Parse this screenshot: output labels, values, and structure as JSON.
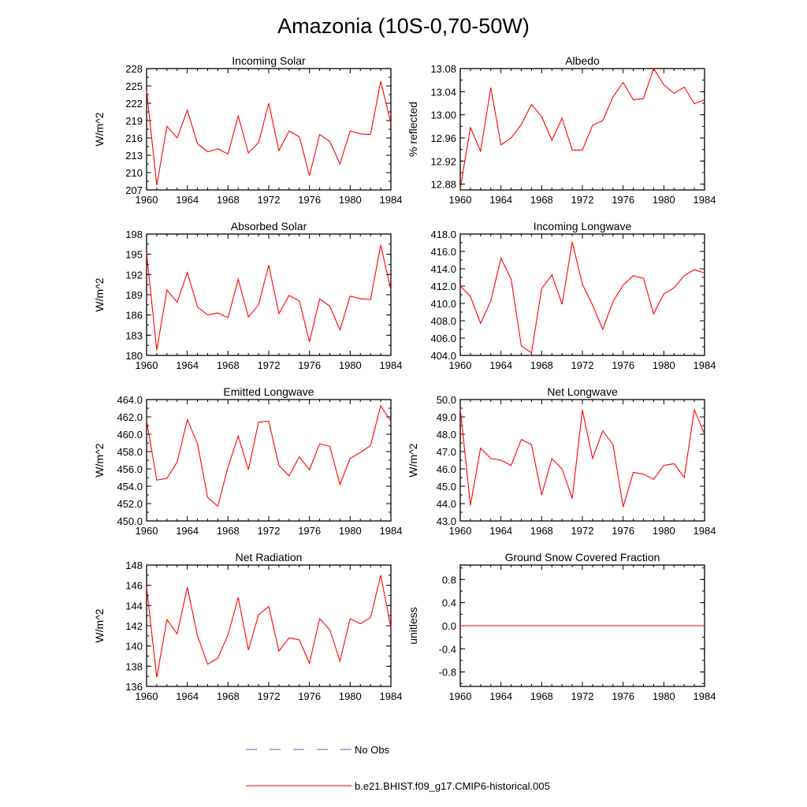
{
  "figure": {
    "title": "Amazonia (10S-0,70-50W)",
    "legend": [
      {
        "label": "No Obs",
        "color": "#5a5aa0",
        "dash": true
      },
      {
        "label": "b.e21.BHIST.f09_g17.CMIP6-historical.005",
        "color": "#ff0000",
        "dash": false
      }
    ],
    "line_color": "#ff0000"
  },
  "chart_data": [
    {
      "type": "line",
      "title": "Incoming Solar",
      "ylabel": "W/m^2",
      "xlim": [
        1960,
        1984
      ],
      "ylim": [
        207,
        228
      ],
      "xticks": [
        "1960",
        "1964",
        "1968",
        "1972",
        "1976",
        "1980",
        "1984"
      ],
      "yticks": [
        {
          "v": 207,
          "label": "207"
        },
        {
          "v": 210,
          "label": "210"
        },
        {
          "v": 213,
          "label": "213"
        },
        {
          "v": 216,
          "label": "216"
        },
        {
          "v": 219,
          "label": "219"
        },
        {
          "v": 222,
          "label": "222"
        },
        {
          "v": 225,
          "label": "225"
        },
        {
          "v": 228,
          "label": "228"
        }
      ],
      "x": [
        1960,
        1961,
        1962,
        1963,
        1964,
        1965,
        1966,
        1967,
        1968,
        1969,
        1970,
        1971,
        1972,
        1973,
        1974,
        1975,
        1976,
        1977,
        1978,
        1979,
        1980,
        1981,
        1982,
        1983,
        1984
      ],
      "series": [
        {
          "values": [
            224.2,
            207.8,
            218.0,
            216.0,
            220.8,
            215.0,
            213.6,
            214.1,
            213.2,
            219.8,
            213.4,
            215.2,
            222.0,
            213.8,
            217.2,
            216.2,
            209.5,
            216.6,
            215.4,
            211.5,
            217.2,
            216.7,
            216.6,
            225.8,
            218.5
          ]
        }
      ]
    },
    {
      "type": "line",
      "title": "Albedo",
      "ylabel": "% reflected",
      "xlim": [
        1960,
        1984
      ],
      "ylim": [
        12.87,
        13.08
      ],
      "xticks": [
        "1960",
        "1964",
        "1968",
        "1972",
        "1976",
        "1980",
        "1984"
      ],
      "yticks": [
        {
          "v": 12.88,
          "label": "12.88"
        },
        {
          "v": 12.92,
          "label": "12.92"
        },
        {
          "v": 12.96,
          "label": "12.96"
        },
        {
          "v": 13.0,
          "label": "13.00"
        },
        {
          "v": 13.04,
          "label": "13.04"
        },
        {
          "v": 13.08,
          "label": "13.08"
        }
      ],
      "x": [
        1960,
        1961,
        1962,
        1963,
        1964,
        1965,
        1966,
        1967,
        1968,
        1969,
        1970,
        1971,
        1972,
        1973,
        1974,
        1975,
        1976,
        1977,
        1978,
        1979,
        1980,
        1981,
        1982,
        1983,
        1984
      ],
      "series": [
        {
          "values": [
            12.872,
            12.978,
            12.937,
            13.047,
            12.948,
            12.96,
            12.983,
            13.018,
            12.997,
            12.956,
            12.994,
            12.939,
            12.939,
            12.982,
            12.99,
            13.031,
            13.056,
            13.026,
            13.028,
            13.08,
            13.052,
            13.037,
            13.048,
            13.019,
            13.026
          ]
        }
      ]
    },
    {
      "type": "line",
      "title": "Absorbed Solar",
      "ylabel": "W/m^2",
      "xlim": [
        1960,
        1984
      ],
      "ylim": [
        180,
        198
      ],
      "xticks": [
        "1960",
        "1964",
        "1968",
        "1972",
        "1976",
        "1980",
        "1984"
      ],
      "yticks": [
        {
          "v": 180,
          "label": "180"
        },
        {
          "v": 183,
          "label": "183"
        },
        {
          "v": 186,
          "label": "186"
        },
        {
          "v": 189,
          "label": "189"
        },
        {
          "v": 192,
          "label": "192"
        },
        {
          "v": 195,
          "label": "195"
        },
        {
          "v": 198,
          "label": "198"
        }
      ],
      "x": [
        1960,
        1961,
        1962,
        1963,
        1964,
        1965,
        1966,
        1967,
        1968,
        1969,
        1970,
        1971,
        1972,
        1973,
        1974,
        1975,
        1976,
        1977,
        1978,
        1979,
        1980,
        1981,
        1982,
        1983,
        1984
      ],
      "series": [
        {
          "values": [
            195.2,
            180.8,
            189.7,
            187.9,
            192.3,
            187.2,
            186.0,
            186.3,
            185.6,
            191.3,
            185.7,
            187.5,
            193.4,
            186.2,
            188.9,
            188.1,
            182.0,
            188.4,
            187.3,
            183.8,
            188.8,
            188.4,
            188.3,
            196.4,
            189.7
          ]
        }
      ]
    },
    {
      "type": "line",
      "title": "Incoming Longwave",
      "ylabel": "",
      "xlim": [
        1960,
        1984
      ],
      "ylim": [
        404,
        418
      ],
      "xticks": [
        "1960",
        "1964",
        "1968",
        "1972",
        "1976",
        "1980",
        "1984"
      ],
      "yticks": [
        {
          "v": 404,
          "label": "404.0"
        },
        {
          "v": 406,
          "label": "406.0"
        },
        {
          "v": 408,
          "label": "408.0"
        },
        {
          "v": 410,
          "label": "410.0"
        },
        {
          "v": 412,
          "label": "412.0"
        },
        {
          "v": 414,
          "label": "414.0"
        },
        {
          "v": 416,
          "label": "416.0"
        },
        {
          "v": 418,
          "label": "418.0"
        }
      ],
      "x": [
        1960,
        1961,
        1962,
        1963,
        1964,
        1965,
        1966,
        1967,
        1968,
        1969,
        1970,
        1971,
        1972,
        1973,
        1974,
        1975,
        1976,
        1977,
        1978,
        1979,
        1980,
        1981,
        1982,
        1983,
        1984
      ],
      "series": [
        {
          "values": [
            412.0,
            410.8,
            407.7,
            410.3,
            415.2,
            412.8,
            405.1,
            404.3,
            411.7,
            413.3,
            409.9,
            417.1,
            412.2,
            409.8,
            407.0,
            410.2,
            412.1,
            413.2,
            412.9,
            408.8,
            411.1,
            411.8,
            413.2,
            413.9,
            413.5
          ]
        }
      ]
    },
    {
      "type": "line",
      "title": "Emitted Longwave",
      "ylabel": "W/m^2",
      "xlim": [
        1960,
        1984
      ],
      "ylim": [
        450,
        464
      ],
      "xticks": [
        "1960",
        "1964",
        "1968",
        "1972",
        "1976",
        "1980",
        "1984"
      ],
      "yticks": [
        {
          "v": 450,
          "label": "450.0"
        },
        {
          "v": 452,
          "label": "452.0"
        },
        {
          "v": 454,
          "label": "454.0"
        },
        {
          "v": 456,
          "label": "456.0"
        },
        {
          "v": 458,
          "label": "458.0"
        },
        {
          "v": 460,
          "label": "460.0"
        },
        {
          "v": 462,
          "label": "462.0"
        },
        {
          "v": 464,
          "label": "464.0"
        }
      ],
      "x": [
        1960,
        1961,
        1962,
        1963,
        1964,
        1965,
        1966,
        1967,
        1968,
        1969,
        1970,
        1971,
        1972,
        1973,
        1974,
        1975,
        1976,
        1977,
        1978,
        1979,
        1980,
        1981,
        1982,
        1983,
        1984
      ],
      "series": [
        {
          "values": [
            461.6,
            454.7,
            454.9,
            456.8,
            461.7,
            458.9,
            452.7,
            451.7,
            456.2,
            459.8,
            455.9,
            461.4,
            461.5,
            456.4,
            455.2,
            457.4,
            455.9,
            458.9,
            458.6,
            454.2,
            457.2,
            457.9,
            458.7,
            463.3,
            461.5
          ]
        }
      ]
    },
    {
      "type": "line",
      "title": "Net Longwave",
      "ylabel": "W/m^2",
      "xlim": [
        1960,
        1984
      ],
      "ylim": [
        43,
        50
      ],
      "xticks": [
        "1960",
        "1964",
        "1968",
        "1972",
        "1976",
        "1980",
        "1984"
      ],
      "yticks": [
        {
          "v": 43,
          "label": "43.0"
        },
        {
          "v": 44,
          "label": "44.0"
        },
        {
          "v": 45,
          "label": "45.0"
        },
        {
          "v": 46,
          "label": "46.0"
        },
        {
          "v": 47,
          "label": "47.0"
        },
        {
          "v": 48,
          "label": "48.0"
        },
        {
          "v": 49,
          "label": "49.0"
        },
        {
          "v": 50,
          "label": "50.0"
        }
      ],
      "x": [
        1960,
        1961,
        1962,
        1963,
        1964,
        1965,
        1966,
        1967,
        1968,
        1969,
        1970,
        1971,
        1972,
        1973,
        1974,
        1975,
        1976,
        1977,
        1978,
        1979,
        1980,
        1981,
        1982,
        1983,
        1984
      ],
      "series": [
        {
          "values": [
            49.5,
            43.9,
            47.2,
            46.6,
            46.5,
            46.2,
            47.7,
            47.4,
            44.5,
            46.6,
            46.0,
            44.3,
            49.4,
            46.6,
            48.2,
            47.4,
            43.8,
            45.8,
            45.7,
            45.4,
            46.2,
            46.3,
            45.5,
            49.4,
            48.0
          ]
        }
      ]
    },
    {
      "type": "line",
      "title": "Net Radiation",
      "ylabel": "W/m^2",
      "xlim": [
        1960,
        1984
      ],
      "ylim": [
        136,
        148
      ],
      "xticks": [
        "1960",
        "1964",
        "1968",
        "1972",
        "1976",
        "1980",
        "1984"
      ],
      "yticks": [
        {
          "v": 136,
          "label": "136"
        },
        {
          "v": 138,
          "label": "138"
        },
        {
          "v": 140,
          "label": "140"
        },
        {
          "v": 142,
          "label": "142"
        },
        {
          "v": 144,
          "label": "144"
        },
        {
          "v": 146,
          "label": "146"
        },
        {
          "v": 148,
          "label": "148"
        }
      ],
      "x": [
        1960,
        1961,
        1962,
        1963,
        1964,
        1965,
        1966,
        1967,
        1968,
        1969,
        1970,
        1971,
        1972,
        1973,
        1974,
        1975,
        1976,
        1977,
        1978,
        1979,
        1980,
        1981,
        1982,
        1983,
        1984
      ],
      "series": [
        {
          "values": [
            145.8,
            136.9,
            142.6,
            141.2,
            145.8,
            141.0,
            138.2,
            138.8,
            141.1,
            144.8,
            139.6,
            143.1,
            143.9,
            139.5,
            140.8,
            140.6,
            138.3,
            142.7,
            141.6,
            138.5,
            142.7,
            142.2,
            142.8,
            147.0,
            141.8
          ]
        }
      ]
    },
    {
      "type": "line",
      "title": "Ground Snow Covered Fraction",
      "ylabel": "unitless",
      "xlim": [
        1960,
        1984
      ],
      "ylim": [
        -1.05,
        1.05
      ],
      "xticks": [
        "1960",
        "1964",
        "1968",
        "1972",
        "1976",
        "1980",
        "1984"
      ],
      "yticks": [
        {
          "v": -0.8,
          "label": "-0.8"
        },
        {
          "v": -0.4,
          "label": "-0.4"
        },
        {
          "v": 0.0,
          "label": "0.0"
        },
        {
          "v": 0.4,
          "label": "0.4"
        },
        {
          "v": 0.8,
          "label": "0.8"
        }
      ],
      "x": [
        1960,
        1961,
        1962,
        1963,
        1964,
        1965,
        1966,
        1967,
        1968,
        1969,
        1970,
        1971,
        1972,
        1973,
        1974,
        1975,
        1976,
        1977,
        1978,
        1979,
        1980,
        1981,
        1982,
        1983,
        1984
      ],
      "series": [
        {
          "values": [
            0,
            0,
            0,
            0,
            0,
            0,
            0,
            0,
            0,
            0,
            0,
            0,
            0,
            0,
            0,
            0,
            0,
            0,
            0,
            0,
            0,
            0,
            0,
            0,
            0
          ]
        }
      ]
    }
  ]
}
